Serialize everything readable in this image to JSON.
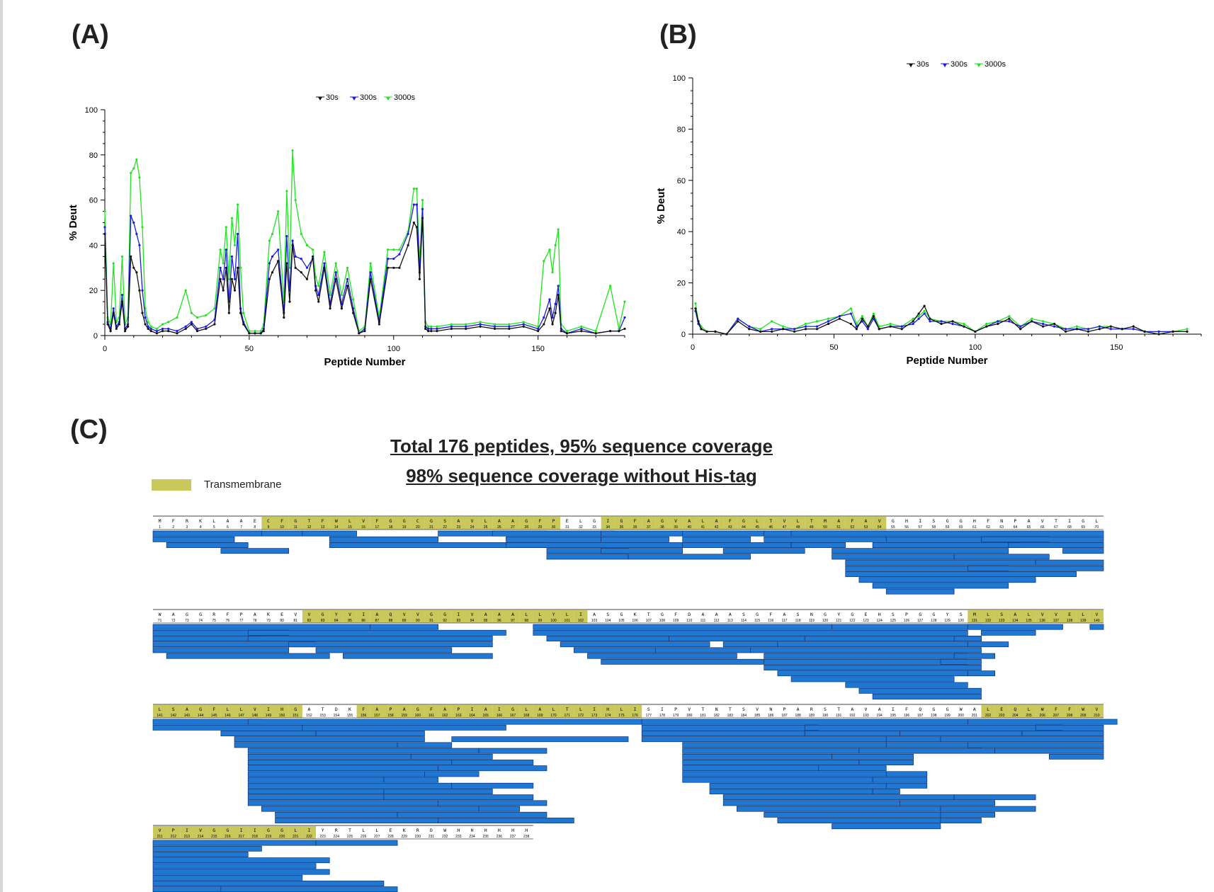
{
  "panels": {
    "a": "(A)",
    "b": "(B)",
    "c": "(C)"
  },
  "chart_data": [
    {
      "type": "line",
      "panel": "A",
      "xlabel": "Peptide Number",
      "ylabel": "% Deut",
      "xlim": [
        0,
        180
      ],
      "ylim": [
        0,
        100
      ],
      "xticks": [
        0,
        50,
        100,
        150
      ],
      "yticks": [
        0,
        20,
        40,
        60,
        80,
        100
      ],
      "legend_position": "top-center",
      "series": [
        {
          "name": "30s",
          "color": "#111111",
          "x": [
            0,
            1,
            2,
            3,
            4,
            5,
            6,
            7,
            8,
            9,
            10,
            11,
            12,
            13,
            14,
            15,
            16,
            18,
            20,
            22,
            25,
            28,
            30,
            32,
            35,
            38,
            40,
            41,
            42,
            43,
            44,
            45,
            46,
            47,
            48,
            50,
            52,
            54,
            55,
            57,
            58,
            60,
            62,
            63,
            64,
            65,
            66,
            68,
            70,
            72,
            73,
            74,
            76,
            78,
            80,
            82,
            84,
            86,
            88,
            90,
            92,
            95,
            98,
            100,
            102,
            105,
            107,
            108,
            109,
            110,
            111,
            112,
            113,
            115,
            120,
            125,
            130,
            135,
            140,
            145,
            150,
            152,
            154,
            155,
            156,
            157,
            158,
            160,
            165,
            170,
            175,
            178,
            180
          ],
          "y": [
            45,
            5,
            2,
            10,
            3,
            5,
            15,
            2,
            4,
            35,
            30,
            28,
            20,
            10,
            5,
            3,
            2,
            1,
            2,
            2,
            1,
            3,
            5,
            2,
            3,
            5,
            25,
            20,
            30,
            10,
            25,
            20,
            30,
            10,
            5,
            1,
            1,
            1,
            2,
            25,
            28,
            33,
            8,
            32,
            15,
            40,
            30,
            28,
            25,
            35,
            20,
            15,
            30,
            12,
            25,
            12,
            22,
            10,
            1,
            2,
            25,
            5,
            30,
            30,
            30,
            40,
            50,
            48,
            25,
            52,
            3,
            2,
            2,
            2,
            3,
            3,
            4,
            3,
            3,
            4,
            2,
            5,
            12,
            5,
            10,
            18,
            2,
            1,
            2,
            1,
            2,
            2,
            3
          ]
        },
        {
          "name": "300s",
          "color": "#1a1ae6",
          "x": [
            0,
            1,
            2,
            3,
            4,
            5,
            6,
            7,
            8,
            9,
            10,
            11,
            12,
            13,
            14,
            15,
            16,
            18,
            20,
            22,
            25,
            28,
            30,
            32,
            35,
            38,
            40,
            41,
            42,
            43,
            44,
            45,
            46,
            47,
            48,
            50,
            52,
            54,
            55,
            57,
            58,
            60,
            62,
            63,
            64,
            65,
            66,
            68,
            70,
            72,
            73,
            74,
            76,
            78,
            80,
            82,
            84,
            86,
            88,
            90,
            92,
            95,
            98,
            100,
            102,
            105,
            107,
            108,
            109,
            110,
            111,
            112,
            113,
            115,
            120,
            125,
            130,
            135,
            140,
            145,
            150,
            152,
            154,
            155,
            156,
            157,
            158,
            160,
            165,
            170,
            175,
            178,
            180
          ],
          "y": [
            48,
            6,
            3,
            12,
            4,
            6,
            18,
            3,
            5,
            53,
            50,
            45,
            40,
            20,
            8,
            4,
            3,
            2,
            3,
            3,
            2,
            4,
            6,
            3,
            4,
            7,
            30,
            25,
            38,
            15,
            35,
            25,
            45,
            12,
            6,
            1,
            1,
            1,
            3,
            32,
            35,
            38,
            10,
            44,
            20,
            42,
            35,
            34,
            30,
            34,
            22,
            18,
            32,
            14,
            28,
            14,
            25,
            12,
            1,
            3,
            28,
            6,
            34,
            34,
            36,
            45,
            58,
            58,
            28,
            56,
            4,
            3,
            3,
            3,
            4,
            4,
            5,
            4,
            4,
            5,
            3,
            8,
            16,
            8,
            14,
            22,
            3,
            1,
            3,
            1,
            2,
            2,
            8
          ]
        },
        {
          "name": "3000s",
          "color": "#1ee61e",
          "x": [
            0,
            1,
            2,
            3,
            4,
            5,
            6,
            7,
            8,
            9,
            10,
            11,
            12,
            13,
            14,
            15,
            16,
            18,
            20,
            22,
            25,
            28,
            30,
            32,
            35,
            38,
            40,
            41,
            42,
            43,
            44,
            45,
            46,
            47,
            48,
            50,
            52,
            54,
            55,
            57,
            58,
            60,
            62,
            63,
            64,
            65,
            66,
            68,
            70,
            72,
            73,
            74,
            76,
            78,
            80,
            82,
            84,
            86,
            88,
            90,
            92,
            95,
            98,
            100,
            102,
            105,
            107,
            108,
            109,
            110,
            111,
            112,
            113,
            115,
            120,
            125,
            130,
            135,
            140,
            145,
            150,
            152,
            154,
            155,
            156,
            157,
            158,
            160,
            165,
            170,
            175,
            178,
            180
          ],
          "y": [
            55,
            8,
            5,
            32,
            6,
            8,
            35,
            5,
            8,
            72,
            74,
            78,
            70,
            48,
            12,
            6,
            4,
            3,
            5,
            6,
            8,
            20,
            10,
            8,
            9,
            12,
            38,
            32,
            48,
            25,
            52,
            40,
            58,
            30,
            10,
            2,
            2,
            2,
            5,
            42,
            45,
            55,
            15,
            64,
            30,
            82,
            60,
            45,
            40,
            38,
            26,
            22,
            37,
            18,
            32,
            18,
            30,
            16,
            2,
            4,
            32,
            8,
            38,
            38,
            38,
            46,
            65,
            65,
            32,
            60,
            6,
            4,
            4,
            4,
            5,
            5,
            6,
            5,
            5,
            6,
            4,
            33,
            38,
            28,
            40,
            47,
            5,
            2,
            4,
            2,
            22,
            3,
            15
          ]
        }
      ]
    },
    {
      "type": "line",
      "panel": "B",
      "xlabel": "Peptide Number",
      "ylabel": "% Deut",
      "xlim": [
        0,
        180
      ],
      "ylim": [
        0,
        100
      ],
      "xticks": [
        0,
        50,
        100,
        150
      ],
      "yticks": [
        0,
        20,
        40,
        60,
        80,
        100
      ],
      "legend_position": "top-center",
      "series": [
        {
          "name": "30s",
          "color": "#111111",
          "x": [
            1,
            2,
            3,
            5,
            8,
            12,
            16,
            20,
            24,
            28,
            32,
            36,
            40,
            44,
            48,
            52,
            56,
            58,
            60,
            62,
            64,
            66,
            70,
            74,
            78,
            80,
            82,
            84,
            88,
            92,
            96,
            100,
            104,
            108,
            112,
            116,
            120,
            124,
            128,
            132,
            136,
            140,
            144,
            148,
            152,
            156,
            160,
            165,
            170,
            175
          ],
          "y": [
            10,
            5,
            2,
            1,
            1,
            0,
            5,
            2,
            1,
            1,
            2,
            1,
            2,
            2,
            4,
            6,
            4,
            2,
            6,
            3,
            7,
            2,
            3,
            2,
            5,
            8,
            11,
            6,
            4,
            5,
            3,
            1,
            3,
            4,
            6,
            2,
            5,
            3,
            4,
            1,
            2,
            1,
            2,
            3,
            2,
            3,
            1,
            0,
            1,
            1
          ]
        },
        {
          "name": "300s",
          "color": "#1a1ae6",
          "x": [
            1,
            2,
            3,
            5,
            8,
            12,
            16,
            20,
            24,
            28,
            32,
            36,
            40,
            44,
            48,
            52,
            56,
            58,
            60,
            62,
            64,
            66,
            70,
            74,
            78,
            80,
            82,
            84,
            88,
            92,
            96,
            100,
            104,
            108,
            112,
            116,
            120,
            124,
            128,
            132,
            136,
            140,
            144,
            148,
            152,
            156,
            160,
            165,
            170,
            175
          ],
          "y": [
            9,
            4,
            2,
            1,
            1,
            0,
            6,
            3,
            1,
            2,
            2,
            2,
            3,
            3,
            5,
            7,
            8,
            3,
            5,
            2,
            6,
            2,
            3,
            3,
            4,
            6,
            8,
            5,
            5,
            4,
            3,
            1,
            3,
            5,
            5,
            3,
            5,
            4,
            3,
            2,
            2,
            2,
            3,
            2,
            2,
            2,
            1,
            1,
            1,
            1
          ]
        },
        {
          "name": "3000s",
          "color": "#1ee61e",
          "x": [
            1,
            2,
            3,
            5,
            8,
            12,
            16,
            20,
            24,
            28,
            32,
            36,
            40,
            44,
            48,
            52,
            56,
            58,
            60,
            62,
            64,
            66,
            70,
            74,
            78,
            80,
            82,
            84,
            88,
            92,
            96,
            100,
            104,
            108,
            112,
            116,
            120,
            124,
            128,
            132,
            136,
            140,
            144,
            148,
            152,
            156,
            160,
            165,
            170,
            175
          ],
          "y": [
            12,
            5,
            3,
            1,
            1,
            0,
            6,
            3,
            2,
            5,
            3,
            2,
            4,
            5,
            6,
            7,
            10,
            4,
            7,
            3,
            8,
            3,
            4,
            3,
            6,
            7,
            9,
            6,
            5,
            5,
            4,
            1,
            4,
            5,
            7,
            3,
            6,
            5,
            4,
            2,
            3,
            2,
            3,
            3,
            2,
            3,
            1,
            0,
            1,
            2
          ]
        }
      ]
    },
    {
      "type": "table",
      "panel": "C",
      "title": "Total 176 peptides, 95% sequence coverage",
      "subtitle": "98% sequence coverage without His-tag",
      "legend": "Transmembrane",
      "sequence_rows": [
        {
          "start": 1,
          "residues": "MFRKLAAECFGTFWLVFGGCGSAVLAAGFPELGIGFAGVALAFGLTVLTMAFAVGHISGGHFNPAVTIGL"
        },
        {
          "start": 71,
          "residues": "WAGGRFPAKEVVGYVIAQVVGGIVAAALLYLIASGKTGFDAAASGFASNGYGEHSPGGYSMLSALVVELV"
        },
        {
          "start": 141,
          "residues": "LSAGFLLVIHGATDKFAPAGFAPIAIGLALTLIHLISIPVTNTSVNPARSTAVAIFQGGWALEQLWFFWV"
        },
        {
          "start": 211,
          "residues": "VPIVGGIIGGLIYRTLLEKRDWHHHHHH"
        }
      ],
      "transmembrane_ranges": [
        [
          9,
          30
        ],
        [
          34,
          54
        ],
        [
          82,
          102
        ],
        [
          131,
          151
        ],
        [
          156,
          176
        ],
        [
          202,
          222
        ]
      ]
    }
  ]
}
